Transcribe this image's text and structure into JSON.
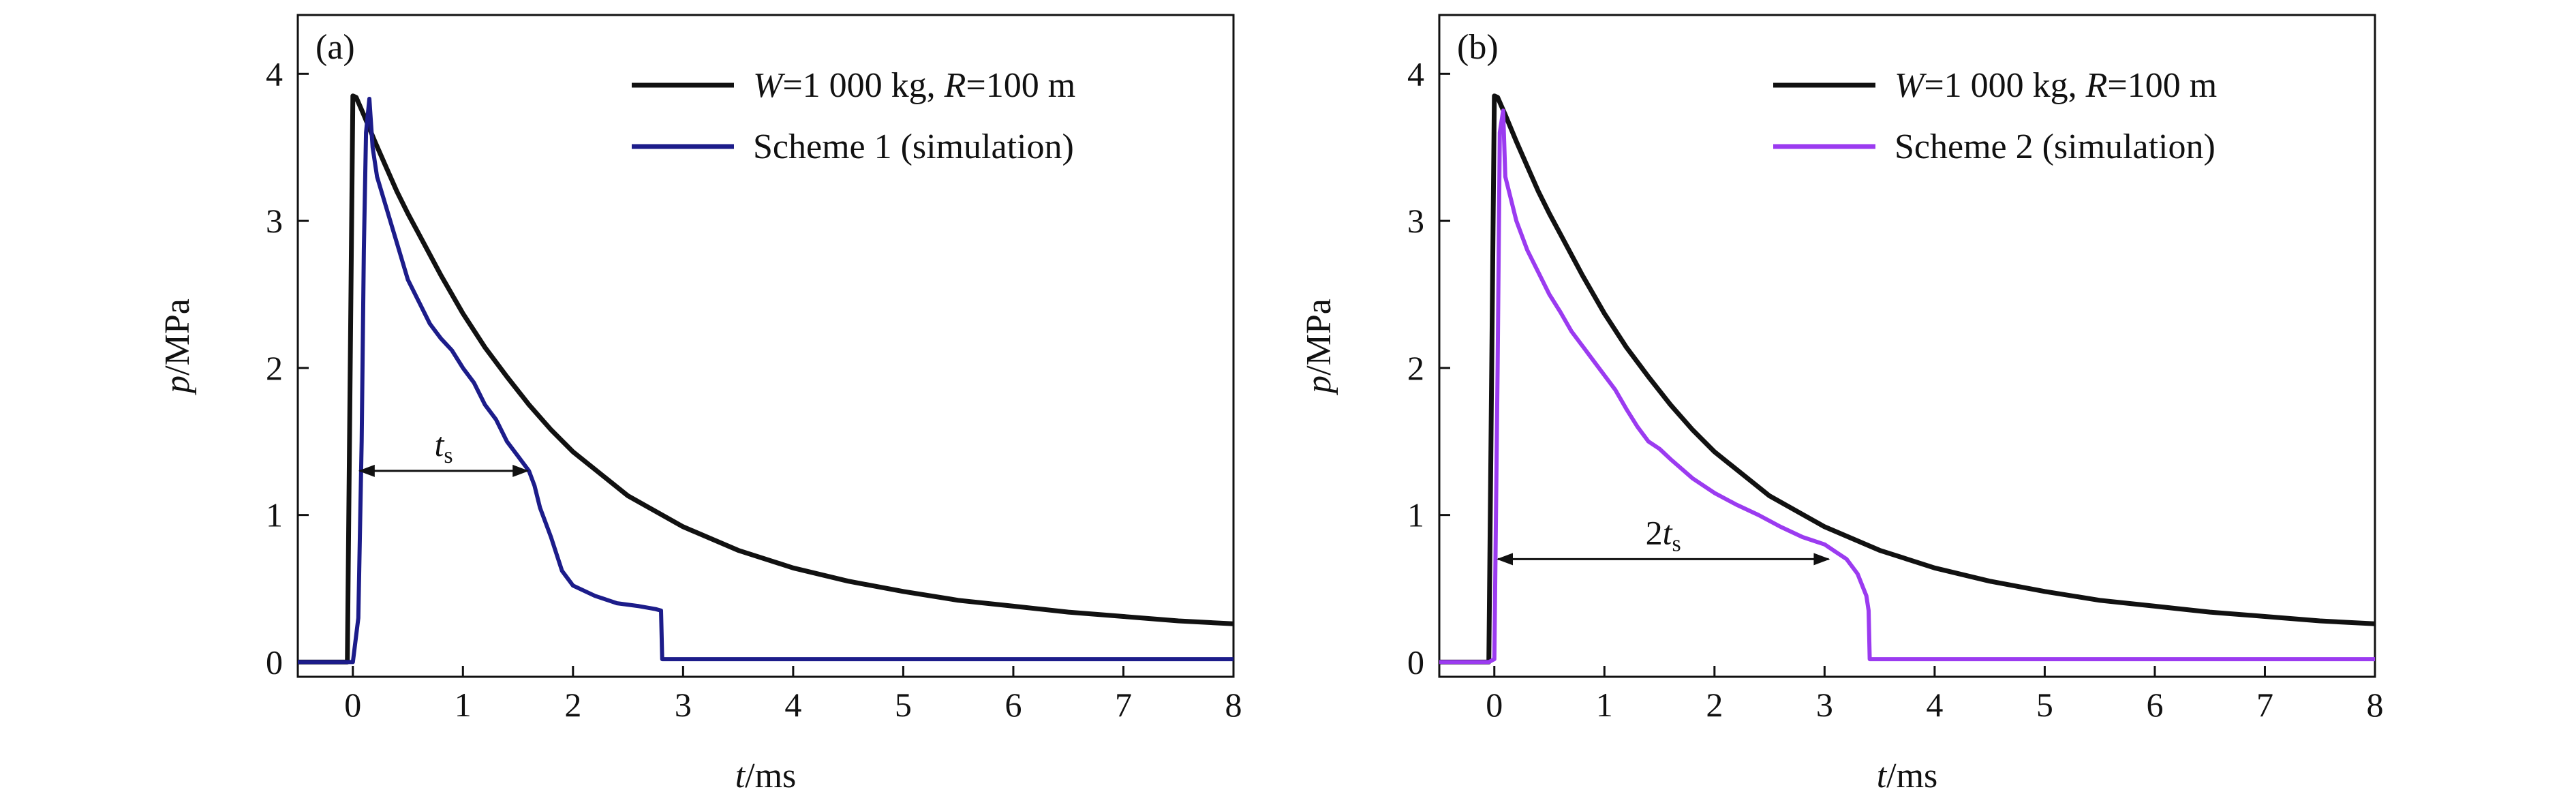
{
  "chart_data": [
    {
      "panel": "(a)",
      "type": "line",
      "xlabel_var": "t",
      "xlabel_unit": "/ms",
      "ylabel_var": "p",
      "ylabel_unit": "/MPa",
      "xlim": [
        -0.5,
        8
      ],
      "ylim": [
        -0.1,
        4.4
      ],
      "xticks": [
        0,
        1,
        2,
        3,
        4,
        5,
        6,
        7,
        8
      ],
      "yticks": [
        0,
        1,
        2,
        3,
        4
      ],
      "legend_placement": "top-right",
      "series": [
        {
          "legend_parts": [
            {
              "text": "W",
              "italic": true
            },
            {
              "text": "=1 000 kg, ",
              "italic": false
            },
            {
              "text": "R",
              "italic": true
            },
            {
              "text": "=100 m",
              "italic": false
            }
          ],
          "color": "#111111",
          "x": [
            -0.5,
            -0.05,
            0.0,
            0.03,
            0.1,
            0.2,
            0.3,
            0.4,
            0.5,
            0.6,
            0.8,
            1.0,
            1.2,
            1.4,
            1.6,
            1.8,
            2.0,
            2.5,
            3.0,
            3.5,
            4.0,
            4.5,
            5.0,
            5.5,
            6.0,
            6.5,
            7.0,
            7.5,
            8.0
          ],
          "y": [
            0.0,
            0.0,
            3.85,
            3.84,
            3.72,
            3.54,
            3.37,
            3.2,
            3.05,
            2.91,
            2.63,
            2.37,
            2.14,
            1.94,
            1.75,
            1.58,
            1.43,
            1.13,
            0.92,
            0.76,
            0.64,
            0.55,
            0.48,
            0.42,
            0.38,
            0.34,
            0.31,
            0.28,
            0.26
          ]
        },
        {
          "legend_parts": [
            {
              "text": "Scheme 1 (simulation)",
              "italic": false
            }
          ],
          "color": "#1c1c8a",
          "x": [
            -0.5,
            0.0,
            0.05,
            0.08,
            0.1,
            0.12,
            0.15,
            0.18,
            0.22,
            0.3,
            0.4,
            0.5,
            0.6,
            0.7,
            0.8,
            0.9,
            1.0,
            1.1,
            1.2,
            1.3,
            1.4,
            1.5,
            1.6,
            1.65,
            1.7,
            1.8,
            1.9,
            2.0,
            2.2,
            2.4,
            2.6,
            2.75,
            2.8,
            2.81,
            3.0,
            8.0
          ],
          "y": [
            0.0,
            0.0,
            0.3,
            1.5,
            2.8,
            3.6,
            3.83,
            3.5,
            3.3,
            3.1,
            2.85,
            2.6,
            2.45,
            2.3,
            2.2,
            2.12,
            2.0,
            1.9,
            1.75,
            1.65,
            1.5,
            1.4,
            1.3,
            1.2,
            1.05,
            0.85,
            0.62,
            0.52,
            0.45,
            0.4,
            0.38,
            0.36,
            0.35,
            0.02,
            0.02,
            0.02
          ]
        }
      ],
      "annotation": {
        "var": "t",
        "sub": "s",
        "coef": "",
        "x_from": 0.05,
        "x_to": 1.6,
        "y": 1.3
      }
    },
    {
      "panel": "(b)",
      "type": "line",
      "xlabel_var": "t",
      "xlabel_unit": "/ms",
      "ylabel_var": "p",
      "ylabel_unit": "/MPa",
      "xlim": [
        -0.5,
        8
      ],
      "ylim": [
        -0.1,
        4.4
      ],
      "xticks": [
        0,
        1,
        2,
        3,
        4,
        5,
        6,
        7,
        8
      ],
      "yticks": [
        0,
        1,
        2,
        3,
        4
      ],
      "legend_placement": "top-right",
      "series": [
        {
          "legend_parts": [
            {
              "text": "W",
              "italic": true
            },
            {
              "text": "=1 000 kg, ",
              "italic": false
            },
            {
              "text": "R",
              "italic": true
            },
            {
              "text": "=100 m",
              "italic": false
            }
          ],
          "color": "#111111",
          "x": [
            -0.5,
            -0.05,
            0.0,
            0.03,
            0.1,
            0.2,
            0.3,
            0.4,
            0.5,
            0.6,
            0.8,
            1.0,
            1.2,
            1.4,
            1.6,
            1.8,
            2.0,
            2.5,
            3.0,
            3.5,
            4.0,
            4.5,
            5.0,
            5.5,
            6.0,
            6.5,
            7.0,
            7.5,
            8.0
          ],
          "y": [
            0.0,
            0.0,
            3.85,
            3.84,
            3.72,
            3.54,
            3.37,
            3.2,
            3.05,
            2.91,
            2.63,
            2.37,
            2.14,
            1.94,
            1.75,
            1.58,
            1.43,
            1.13,
            0.92,
            0.76,
            0.64,
            0.55,
            0.48,
            0.42,
            0.38,
            0.34,
            0.31,
            0.28,
            0.26
          ]
        },
        {
          "legend_parts": [
            {
              "text": "Scheme 2 (simulation)",
              "italic": false
            }
          ],
          "color": "#9b3bf0",
          "x": [
            -0.5,
            -0.05,
            0.0,
            0.03,
            0.05,
            0.08,
            0.1,
            0.15,
            0.2,
            0.3,
            0.4,
            0.5,
            0.6,
            0.7,
            0.8,
            0.9,
            1.0,
            1.1,
            1.2,
            1.3,
            1.4,
            1.5,
            1.6,
            1.8,
            2.0,
            2.2,
            2.4,
            2.6,
            2.8,
            3.0,
            3.1,
            3.2,
            3.3,
            3.38,
            3.4,
            3.41,
            3.6,
            8.0
          ],
          "y": [
            0.0,
            0.0,
            0.02,
            2.0,
            3.6,
            3.75,
            3.3,
            3.15,
            3.0,
            2.8,
            2.65,
            2.5,
            2.38,
            2.25,
            2.15,
            2.05,
            1.95,
            1.85,
            1.72,
            1.6,
            1.5,
            1.45,
            1.38,
            1.25,
            1.15,
            1.07,
            1.0,
            0.92,
            0.85,
            0.8,
            0.75,
            0.7,
            0.6,
            0.45,
            0.35,
            0.02,
            0.02,
            0.02
          ]
        }
      ],
      "annotation": {
        "var": "t",
        "sub": "s",
        "coef": "2",
        "x_from": 0.02,
        "x_to": 3.05,
        "y": 0.7
      }
    }
  ]
}
